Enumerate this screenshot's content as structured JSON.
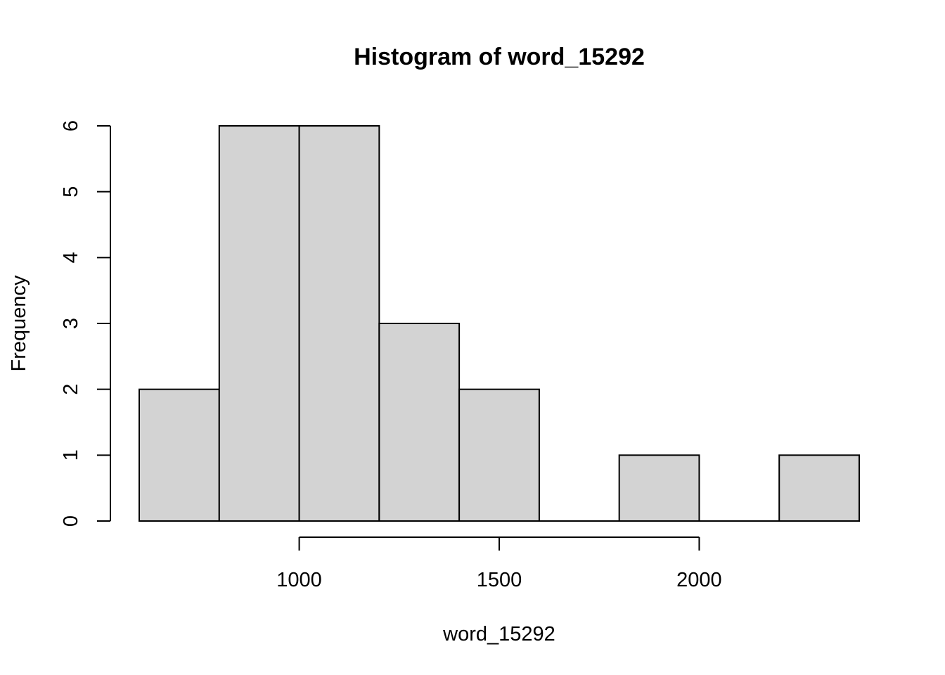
{
  "chart_data": {
    "type": "bar",
    "title": "Histogram of word_15292",
    "xlabel": "word_15292",
    "ylabel": "Frequency",
    "bins": [
      {
        "start": 600,
        "end": 800,
        "count": 2
      },
      {
        "start": 800,
        "end": 1000,
        "count": 6
      },
      {
        "start": 1000,
        "end": 1200,
        "count": 6
      },
      {
        "start": 1200,
        "end": 1400,
        "count": 3
      },
      {
        "start": 1400,
        "end": 1600,
        "count": 2
      },
      {
        "start": 1600,
        "end": 1800,
        "count": 0
      },
      {
        "start": 1800,
        "end": 2000,
        "count": 1
      },
      {
        "start": 2000,
        "end": 2200,
        "count": 0
      },
      {
        "start": 2200,
        "end": 2400,
        "count": 1
      }
    ],
    "xlim": [
      600,
      2400
    ],
    "ylim": [
      0,
      6
    ],
    "x_ticks": [
      1000,
      1500,
      2000
    ],
    "x_tick_labels": [
      "1000",
      "1500",
      "2000"
    ],
    "y_ticks": [
      0,
      1,
      2,
      3,
      4,
      5,
      6
    ],
    "y_tick_labels": [
      "0",
      "1",
      "2",
      "3",
      "4",
      "5",
      "6"
    ],
    "grid": false,
    "colors": {
      "bar_fill": "#d3d3d3",
      "bar_stroke": "#000000",
      "background": "#ffffff"
    }
  }
}
